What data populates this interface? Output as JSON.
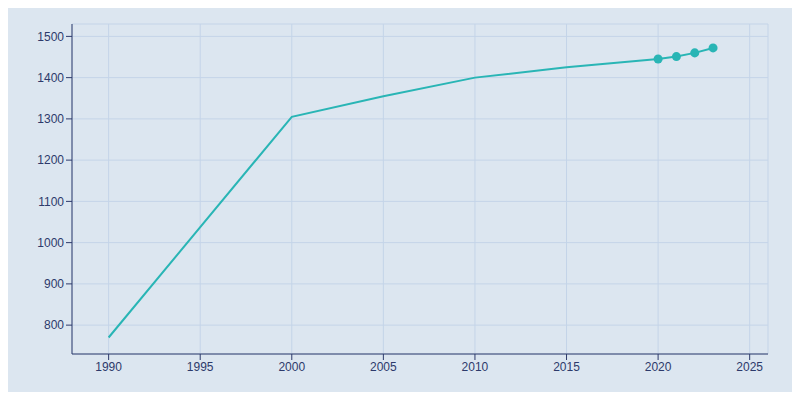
{
  "chart_data": {
    "type": "line",
    "x": [
      1990,
      2000,
      2005,
      2010,
      2015,
      2020,
      2021,
      2022,
      2023
    ],
    "series": [
      {
        "type": "line",
        "color": "#29b5b5",
        "values": [
          770,
          1305,
          1355,
          1400,
          1425,
          1445,
          1451,
          1460,
          1472
        ]
      },
      {
        "type": "scatter",
        "marker": "circle",
        "color": "#29b5b5",
        "values": [
          null,
          null,
          null,
          null,
          null,
          1445,
          1451,
          1460,
          1472
        ]
      }
    ],
    "xlim": [
      1988,
      2026
    ],
    "ylim": [
      730,
      1530
    ],
    "xticks": [
      1990,
      1995,
      2000,
      2005,
      2010,
      2015,
      2020,
      2025
    ],
    "yticks": [
      800,
      900,
      1000,
      1100,
      1200,
      1300,
      1400,
      1500
    ],
    "grid": true
  }
}
